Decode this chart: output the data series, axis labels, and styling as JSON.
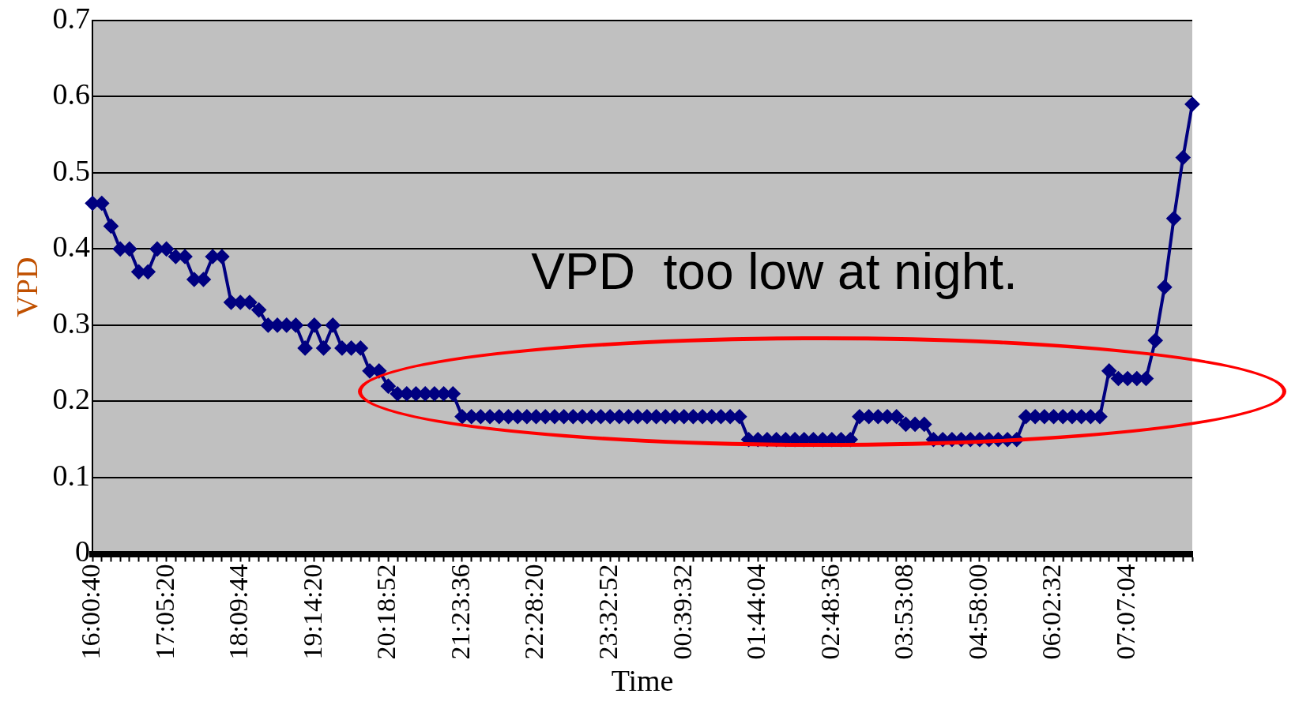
{
  "chart_data": {
    "type": "line",
    "xlabel": "Time",
    "ylabel": "VPD",
    "annotations": [
      "VPD  too low at night."
    ],
    "categories": [
      "16:00:40",
      null,
      null,
      null,
      null,
      null,
      null,
      null,
      "17:05:20",
      null,
      null,
      null,
      null,
      null,
      null,
      null,
      "18:09:44",
      null,
      null,
      null,
      null,
      null,
      null,
      null,
      "19:14:20",
      null,
      null,
      null,
      null,
      null,
      null,
      null,
      "20:18:52",
      null,
      null,
      null,
      null,
      null,
      null,
      null,
      "21:23:36",
      null,
      null,
      null,
      null,
      null,
      null,
      null,
      "22:28:20",
      null,
      null,
      null,
      null,
      null,
      null,
      null,
      "23:32:52",
      null,
      null,
      null,
      null,
      null,
      null,
      null,
      "00:39:32",
      null,
      null,
      null,
      null,
      null,
      null,
      null,
      "01:44:04",
      null,
      null,
      null,
      null,
      null,
      null,
      null,
      "02:48:36",
      null,
      null,
      null,
      null,
      null,
      null,
      null,
      "03:53:08",
      null,
      null,
      null,
      null,
      null,
      null,
      null,
      "04:58:00",
      null,
      null,
      null,
      null,
      null,
      null,
      null,
      "06:02:32",
      null,
      null,
      null,
      null,
      null,
      null,
      null,
      "07:07:04",
      null,
      null,
      null,
      null,
      null,
      null,
      null
    ],
    "series": [
      {
        "color": "#000080",
        "values": [
          0.46,
          0.46,
          0.43,
          0.4,
          0.4,
          0.37,
          0.37,
          0.4,
          0.4,
          0.39,
          0.39,
          0.36,
          0.36,
          0.39,
          0.39,
          0.33,
          0.33,
          0.33,
          0.32,
          0.3,
          0.3,
          0.3,
          0.3,
          0.27,
          0.3,
          0.27,
          0.3,
          0.27,
          0.27,
          0.27,
          0.24,
          0.24,
          0.22,
          0.21,
          0.21,
          0.21,
          0.21,
          0.21,
          0.21,
          0.21,
          0.18,
          0.18,
          0.18,
          0.18,
          0.18,
          0.18,
          0.18,
          0.18,
          0.18,
          0.18,
          0.18,
          0.18,
          0.18,
          0.18,
          0.18,
          0.18,
          0.18,
          0.18,
          0.18,
          0.18,
          0.18,
          0.18,
          0.18,
          0.18,
          0.18,
          0.18,
          0.18,
          0.18,
          0.18,
          0.18,
          0.18,
          0.15,
          0.15,
          0.15,
          0.15,
          0.15,
          0.15,
          0.15,
          0.15,
          0.15,
          0.15,
          0.15,
          0.15,
          0.18,
          0.18,
          0.18,
          0.18,
          0.18,
          0.17,
          0.17,
          0.17,
          0.15,
          0.15,
          0.15,
          0.15,
          0.15,
          0.15,
          0.15,
          0.15,
          0.15,
          0.15,
          0.18,
          0.18,
          0.18,
          0.18,
          0.18,
          0.18,
          0.18,
          0.18,
          0.18,
          0.24,
          0.23,
          0.23,
          0.23,
          0.23,
          0.28,
          0.35,
          0.44,
          0.52,
          0.59
        ]
      }
    ],
    "ylim": [
      0,
      0.7
    ],
    "yticks": [
      0,
      0.1,
      0.2,
      0.3,
      0.4,
      0.5,
      0.6,
      0.7
    ],
    "grid": "y",
    "legend": false,
    "marker": "diamond",
    "line_style": "solid"
  }
}
